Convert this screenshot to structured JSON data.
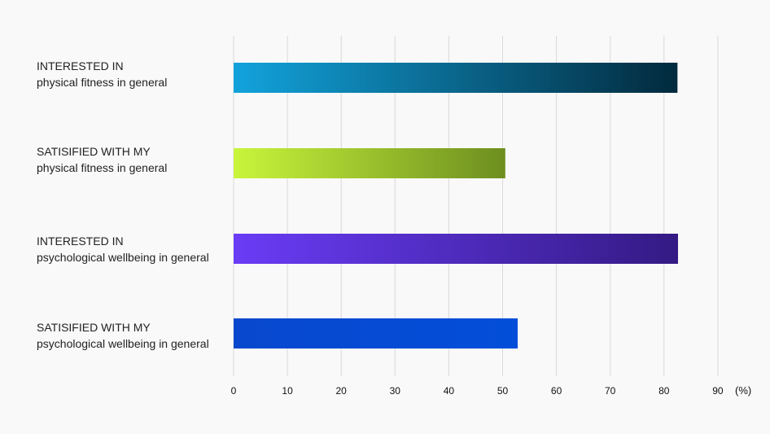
{
  "chart_data": {
    "type": "bar",
    "orientation": "horizontal",
    "categories": [
      [
        "INTERESTED IN",
        "physical fitness in general"
      ],
      [
        "SATISIFIED WITH MY",
        "physical fitness in general"
      ],
      [
        "INTERESTED IN",
        "psychological wellbeing in general"
      ],
      [
        "SATISIFIED WITH MY",
        "psychological wellbeing in general"
      ]
    ],
    "values": [
      82.5,
      50.5,
      82.6,
      52.8
    ],
    "xlim": [
      0,
      90
    ],
    "xticks": [
      0,
      10,
      20,
      30,
      40,
      50,
      60,
      70,
      80,
      90
    ],
    "xunit": "(%)",
    "grid": true,
    "colors": [
      [
        "#12a3dc",
        "#022a3d"
      ],
      [
        "#c9f53b",
        "#6d8e1f"
      ],
      [
        "#6a3cf6",
        "#341a84"
      ],
      [
        "#0848ce",
        "#034ed9"
      ]
    ]
  }
}
